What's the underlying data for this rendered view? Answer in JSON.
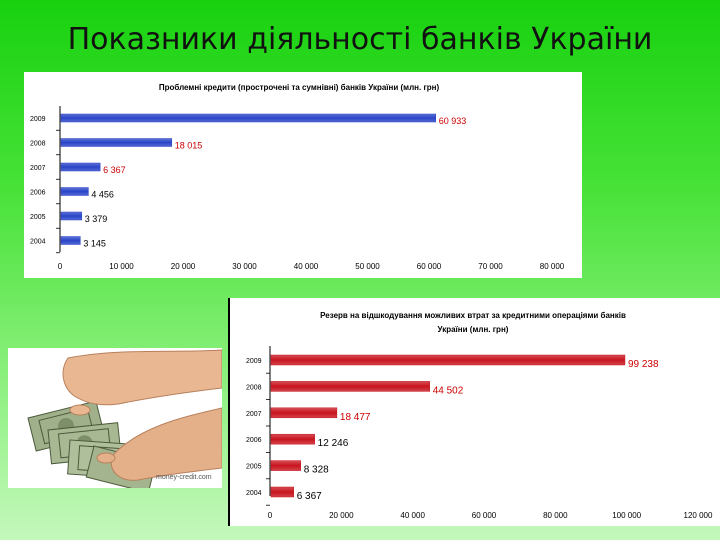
{
  "slide": {
    "title": "Показники діяльності банків України"
  },
  "photo": {
    "watermark": "money-credit.com"
  },
  "chart_data": [
    {
      "type": "bar",
      "orientation": "horizontal",
      "title": "Проблемні кредити (прострочені та сумнівні) банків України (млн. грн)",
      "categories": [
        "2009",
        "2008",
        "2007",
        "2006",
        "2005",
        "2004"
      ],
      "values": [
        60933,
        18015,
        6367,
        4456,
        3379,
        3145
      ],
      "value_labels": [
        "60 933",
        "18 015",
        "6 367",
        "4 456",
        "3 379",
        "3 145"
      ],
      "xlim": [
        0,
        80000
      ],
      "x_ticks": [
        "0",
        "10 000",
        "20 000",
        "30 000",
        "40 000",
        "50 000",
        "60 000",
        "70 000",
        "80 000"
      ],
      "bar_color": "#2a44c8",
      "label_colors": [
        "#cc0000",
        "#cc0000",
        "#cc0000",
        "#000000",
        "#000000",
        "#000000"
      ],
      "grid": false
    },
    {
      "type": "bar",
      "orientation": "horizontal",
      "title": "Резерв на відшкодування можливих втрат за кредитними операціями банків України (млн. грн)",
      "title_lines": [
        "Резерв на відшкодування можливих втрат за кредитними операціями банків",
        "України (млн. грн)"
      ],
      "categories": [
        "2009",
        "2008",
        "2007",
        "2006",
        "2005",
        "2004"
      ],
      "values": [
        99238,
        44502,
        18477,
        12246,
        8328,
        6367
      ],
      "value_labels": [
        "99 238",
        "44 502",
        "18 477",
        "12 246",
        "8 328",
        "6 367"
      ],
      "xlim": [
        0,
        120000
      ],
      "x_ticks": [
        "0",
        "20 000",
        "40 000",
        "60 000",
        "80 000",
        "100 000",
        "120 000"
      ],
      "bar_color": "#c8141e",
      "label_colors": [
        "#cc0000",
        "#cc0000",
        "#cc0000",
        "#000000",
        "#000000",
        "#000000"
      ],
      "grid": false
    }
  ]
}
